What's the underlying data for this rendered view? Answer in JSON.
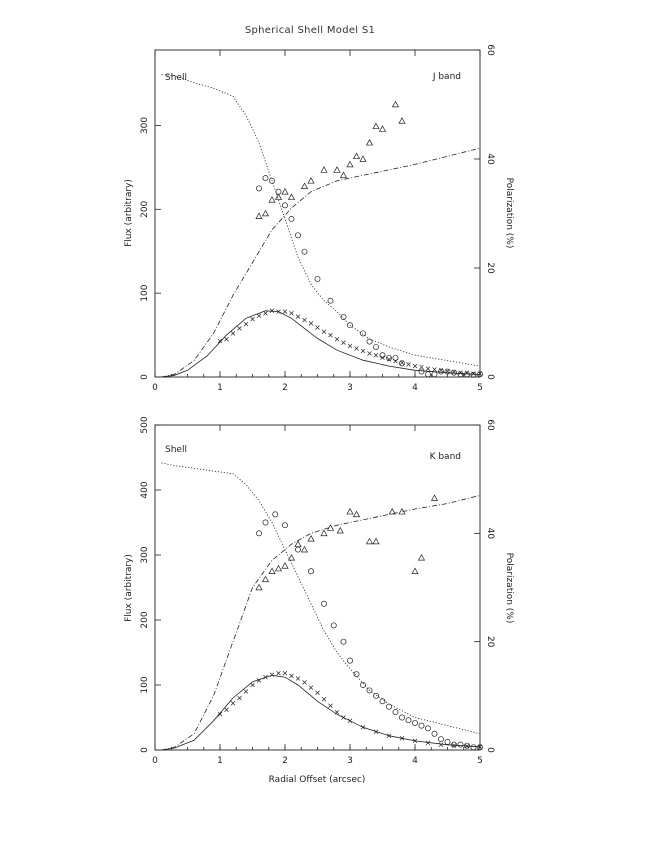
{
  "chart_data": {
    "title": "Spherical Shell Model S1",
    "panels": [
      {
        "label": "Shell",
        "band": "J band",
        "type": "line",
        "xlim": [
          0,
          5
        ],
        "ylim_left": [
          0,
          390
        ],
        "ylim_right": [
          0,
          60
        ],
        "xlabel": "",
        "ylabel_left": "Flux (arbitrary)",
        "ylabel_right": "Polarization (%)",
        "xticks": [
          "0",
          "1",
          "2",
          "3",
          "4",
          "5"
        ],
        "yticks_left": [
          "0",
          "100",
          "200",
          "300"
        ],
        "yticks_right": [
          "0",
          "20",
          "40",
          "60"
        ],
        "series": [
          {
            "style": "solid",
            "axis": "left",
            "x": [
              0.1,
              0.3,
              0.5,
              0.8,
              1.1,
              1.4,
              1.7,
              1.9,
              2.1,
              2.3,
              2.5,
              2.8,
              3.2,
              3.6,
              4.0,
              4.5,
              5.0
            ],
            "y": [
              0,
              2,
              8,
              25,
              50,
              70,
              79,
              78,
              70,
              58,
              46,
              32,
              20,
              13,
              8,
              5,
              3
            ]
          },
          {
            "style": "x",
            "axis": "left",
            "x": [
              1.0,
              1.1,
              1.2,
              1.3,
              1.4,
              1.5,
              1.6,
              1.7,
              1.8,
              1.9,
              2.0,
              2.1,
              2.2,
              2.3,
              2.4,
              2.5,
              2.6,
              2.7,
              2.8,
              2.9,
              3.0,
              3.1,
              3.2,
              3.3,
              3.4,
              3.5,
              3.6,
              3.7,
              3.8,
              3.9,
              4.0,
              4.1,
              4.2,
              4.3,
              4.4,
              4.5,
              4.6,
              4.7,
              4.8,
              4.9,
              5.0
            ],
            "y": [
              43,
              45,
              52,
              58,
              63,
              69,
              73,
              76,
              79,
              78,
              78,
              76,
              72,
              68,
              64,
              59,
              54,
              50,
              45,
              41,
              37,
              34,
              31,
              28,
              26,
              23,
              21,
              19,
              17,
              15,
              13,
              12,
              10,
              9,
              8,
              7,
              6,
              5,
              5,
              4,
              4
            ]
          },
          {
            "style": "dotted",
            "axis": "right",
            "x": [
              0.1,
              0.3,
              0.6,
              0.9,
              1.2,
              1.4,
              1.6,
              1.8,
              2.0,
              2.2,
              2.4,
              2.6,
              2.8,
              3.0,
              3.3,
              3.6,
              4.0,
              4.5,
              5.0
            ],
            "y": [
              55.5,
              55.3,
              54,
              53,
              51.5,
              48,
              43,
              36,
              29,
              22,
              17,
              14,
              12,
              9.5,
              7,
              5.5,
              4,
              3,
              2
            ]
          },
          {
            "style": "circle",
            "axis": "right",
            "x": [
              1.6,
              1.7,
              1.8,
              1.9,
              2.0,
              2.1,
              2.2,
              2.3,
              2.5,
              2.7,
              2.9,
              3.0,
              3.2,
              3.3,
              3.4,
              3.5,
              3.6,
              3.7,
              3.8,
              4.1,
              4.2,
              4.3,
              4.4,
              4.5,
              4.6,
              4.7,
              4.8,
              4.9,
              5.0
            ],
            "y": [
              34.6,
              36.5,
              36,
              34,
              31.5,
              29,
              26,
              23,
              18,
              14,
              11,
              9.5,
              8,
              6.5,
              5.5,
              4,
              3.5,
              3.5,
              2.5,
              1,
              0.5,
              0.5,
              1,
              1,
              0.8,
              0.5,
              0.5,
              0.4,
              0.5
            ]
          },
          {
            "style": "dashdot",
            "axis": "right",
            "x": [
              0.1,
              0.3,
              0.6,
              0.9,
              1.2,
              1.5,
              1.8,
              2.1,
              2.4,
              2.8,
              3.2,
              3.6,
              4.0,
              4.5,
              5.0
            ],
            "y": [
              0,
              0.5,
              3,
              8,
              15,
              21,
              27,
              31,
              34,
              36,
              37,
              38,
              39,
              40.5,
              42
            ]
          },
          {
            "style": "triangle",
            "axis": "right",
            "x": [
              1.6,
              1.7,
              1.8,
              1.9,
              2.0,
              2.1,
              2.3,
              2.4,
              2.6,
              2.8,
              2.9,
              3.0,
              3.1,
              3.2,
              3.3,
              3.4,
              3.5,
              3.7,
              3.8
            ],
            "y": [
              29.5,
              30,
              32.5,
              33,
              34,
              33,
              35,
              36,
              38,
              38,
              37,
              39,
              40.5,
              40,
              43,
              46,
              45.5,
              50,
              47
            ]
          }
        ]
      },
      {
        "label": "Shell",
        "band": "K band",
        "type": "line",
        "xlim": [
          0,
          5
        ],
        "ylim_left": [
          0,
          500
        ],
        "ylim_right": [
          0,
          60
        ],
        "xlabel": "Radial Offset (arcsec)",
        "ylabel_left": "Flux (arbitrary)",
        "ylabel_right": "Polarization (%)",
        "xticks": [
          "0",
          "1",
          "2",
          "3",
          "4",
          "5"
        ],
        "yticks_left": [
          "0",
          "100",
          "200",
          "300",
          "400",
          "500"
        ],
        "yticks_right": [
          "0",
          "20",
          "40",
          "60"
        ],
        "series": [
          {
            "style": "solid",
            "axis": "left",
            "x": [
              0.1,
              0.3,
              0.6,
              0.9,
              1.2,
              1.5,
              1.8,
              2.0,
              2.2,
              2.5,
              2.8,
              3.2,
              3.6,
              4.0,
              4.5,
              5.0
            ],
            "y": [
              0,
              3,
              15,
              45,
              80,
              105,
              115,
              112,
              100,
              75,
              55,
              35,
              22,
              14,
              8,
              5
            ]
          },
          {
            "style": "x",
            "axis": "left",
            "x": [
              1.0,
              1.1,
              1.2,
              1.3,
              1.4,
              1.5,
              1.6,
              1.7,
              1.8,
              1.9,
              2.0,
              2.1,
              2.2,
              2.3,
              2.4,
              2.5,
              2.6,
              2.7,
              2.8,
              2.9,
              3.0,
              3.2,
              3.4,
              3.6,
              3.8,
              4.0,
              4.2,
              4.4,
              4.6,
              4.8,
              5.0
            ],
            "y": [
              55,
              62,
              72,
              80,
              90,
              100,
              107,
              112,
              116,
              118,
              118,
              114,
              110,
              104,
              96,
              88,
              78,
              68,
              58,
              50,
              45,
              35,
              28,
              22,
              18,
              14,
              11,
              8,
              7,
              6,
              5
            ]
          },
          {
            "style": "dotted",
            "axis": "right",
            "x": [
              0.1,
              0.3,
              0.6,
              0.9,
              1.2,
              1.4,
              1.6,
              1.8,
              2.0,
              2.2,
              2.4,
              2.6,
              2.8,
              3.0,
              3.3,
              3.6,
              4.0,
              4.5,
              5.0
            ],
            "y": [
              53,
              52.5,
              52,
              51.5,
              51,
              49,
              46,
              42,
              37,
              32,
              27,
              22,
              18,
              15,
              11,
              8.5,
              6,
              4.5,
              3
            ]
          },
          {
            "style": "circle",
            "axis": "right",
            "x": [
              1.6,
              1.7,
              1.85,
              2.0,
              2.2,
              2.4,
              2.6,
              2.75,
              2.9,
              3.0,
              3.1,
              3.2,
              3.3,
              3.4,
              3.5,
              3.6,
              3.7,
              3.8,
              3.9,
              4.0,
              4.1,
              4.2,
              4.3,
              4.4,
              4.5,
              4.6,
              4.7,
              4.8,
              4.9,
              5.0
            ],
            "y": [
              40,
              42,
              43.5,
              41.5,
              37,
              33,
              27,
              23,
              20,
              16.5,
              14,
              12,
              11,
              10,
              9,
              8,
              7,
              6,
              5.5,
              5,
              4.5,
              4,
              3,
              2,
              1.5,
              1,
              1,
              0.8,
              0.5,
              0.5
            ]
          },
          {
            "style": "dashdot",
            "axis": "right",
            "x": [
              0.1,
              0.3,
              0.6,
              0.9,
              1.2,
              1.5,
              1.8,
              2.1,
              2.4,
              2.8,
              3.2,
              3.6,
              4.0,
              4.5,
              5.0
            ],
            "y": [
              0,
              0.5,
              3,
              10,
              20,
              30,
              35,
              38,
              40,
              41.5,
              42.5,
              43.5,
              44.5,
              45.5,
              47
            ]
          },
          {
            "style": "triangle",
            "axis": "right",
            "x": [
              1.6,
              1.7,
              1.8,
              1.9,
              2.0,
              2.1,
              2.2,
              2.3,
              2.4,
              2.6,
              2.7,
              2.85,
              3.0,
              3.1,
              3.3,
              3.4,
              3.65,
              3.8,
              4.0,
              4.1,
              4.3
            ],
            "y": [
              30,
              31.5,
              33,
              33.5,
              34,
              35.5,
              38,
              37,
              39,
              40,
              41,
              40.5,
              44,
              43.5,
              38.5,
              38.5,
              44,
              44,
              33,
              35.5,
              46.5
            ]
          }
        ]
      }
    ]
  }
}
